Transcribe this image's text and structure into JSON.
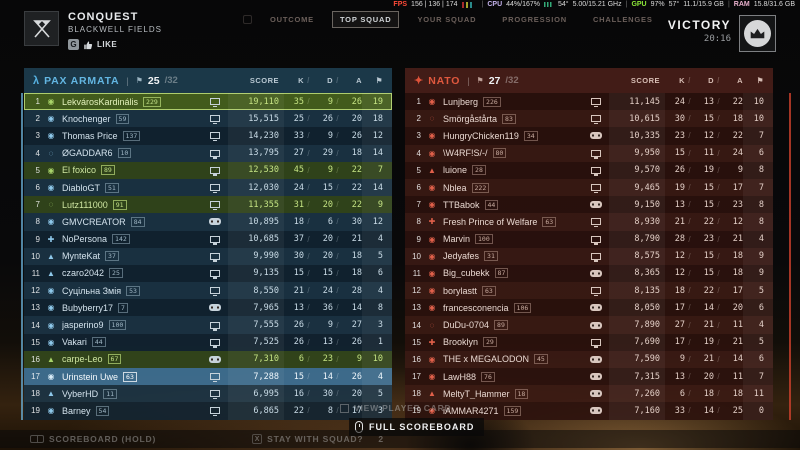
{
  "topbar": {
    "mode": "CONQUEST",
    "map": "BLACKWELL FIELDS",
    "like_key": "G",
    "like_label": "LIKE",
    "tabs": [
      {
        "label": "OUTCOME",
        "selected": false
      },
      {
        "label": "TOP SQUAD",
        "selected": true
      },
      {
        "label": "YOUR SQUAD",
        "selected": false
      },
      {
        "label": "PROGRESSION",
        "selected": false
      },
      {
        "label": "CHALLENGES",
        "selected": false
      }
    ],
    "perf": {
      "fps_label": "FPS",
      "fps": "156 | 136 | 174",
      "cpu_label": "CPU",
      "cpu": "44%/167%",
      "cpu_temp": "54°",
      "cpu_clock": "5.00/15.21 GHz",
      "gpu_label": "GPU",
      "gpu": "97%",
      "gpu_temp": "57°",
      "vram": "11.1/15.9 GB",
      "ram_label": "RAM",
      "ram": "15.8/31.6 GB"
    },
    "result": {
      "label": "VICTORY",
      "time": "20:16"
    }
  },
  "columns": {
    "score": "SCORE",
    "k": "K",
    "d": "D",
    "a": "A",
    "flag_glyph": "⚑"
  },
  "icons": {
    "class_glyphs": {
      "circle": "◉",
      "dashed": "◌",
      "triangle": "▲",
      "cross": "✚"
    },
    "team_pax_glyph": "λ",
    "team_nato_glyph": "✦"
  },
  "colors": {
    "pax_accent": "#5fb6e4",
    "nato_accent": "#e0533a",
    "squad_green": "#a9d46a",
    "fps": "#ff4a38",
    "gpu": "#8ce838"
  },
  "teams": [
    {
      "name": "PAX ARMATA",
      "count": "25",
      "max": "/32",
      "rows": [
        {
          "rank": "1",
          "class": "circle",
          "name": "LekvárosKardinális",
          "level": "229",
          "platform": "pc",
          "score": "19,110",
          "k": "35",
          "d": "9",
          "a": "26",
          "f": "19",
          "hl": "top"
        },
        {
          "rank": "2",
          "class": "circle",
          "name": "Knochenger",
          "level": "59",
          "platform": "pc",
          "score": "15,515",
          "k": "25",
          "d": "26",
          "a": "20",
          "f": "18",
          "hl": ""
        },
        {
          "rank": "3",
          "class": "circle",
          "name": "Thomas Price",
          "level": "137",
          "platform": "pc",
          "score": "14,230",
          "k": "33",
          "d": "9",
          "a": "26",
          "f": "12",
          "hl": ""
        },
        {
          "rank": "4",
          "class": "dashed",
          "name": "ØGADDAR6",
          "level": "10",
          "platform": "pc",
          "score": "13,795",
          "k": "27",
          "d": "29",
          "a": "18",
          "f": "14",
          "hl": ""
        },
        {
          "rank": "5",
          "class": "circle",
          "name": "El foxico",
          "level": "89",
          "platform": "pc",
          "score": "12,530",
          "k": "45",
          "d": "9",
          "a": "22",
          "f": "7",
          "hl": "squad"
        },
        {
          "rank": "6",
          "class": "circle",
          "name": "DiabloGT",
          "level": "51",
          "platform": "pc",
          "score": "12,030",
          "k": "24",
          "d": "15",
          "a": "22",
          "f": "14",
          "hl": ""
        },
        {
          "rank": "7",
          "class": "dashed",
          "name": "Lutz111000",
          "level": "91",
          "platform": "pc",
          "score": "11,355",
          "k": "31",
          "d": "20",
          "a": "22",
          "f": "9",
          "hl": "squad"
        },
        {
          "rank": "8",
          "class": "circle",
          "name": "GMVCREATOR",
          "level": "84",
          "platform": "console",
          "score": "10,895",
          "k": "18",
          "d": "6",
          "a": "30",
          "f": "12",
          "hl": ""
        },
        {
          "rank": "9",
          "class": "cross",
          "name": "NoPersona",
          "level": "142",
          "platform": "pc",
          "score": "10,685",
          "k": "37",
          "d": "20",
          "a": "21",
          "f": "4",
          "hl": ""
        },
        {
          "rank": "10",
          "class": "triangle",
          "name": "MynteKat",
          "level": "37",
          "platform": "pc",
          "score": "9,990",
          "k": "30",
          "d": "20",
          "a": "18",
          "f": "5",
          "hl": ""
        },
        {
          "rank": "11",
          "class": "triangle",
          "name": "czaro2042",
          "level": "25",
          "platform": "pc",
          "score": "9,135",
          "k": "15",
          "d": "15",
          "a": "18",
          "f": "6",
          "hl": ""
        },
        {
          "rank": "12",
          "class": "circle",
          "name": "Суцільна Змія",
          "level": "53",
          "platform": "pc",
          "score": "8,550",
          "k": "21",
          "d": "24",
          "a": "28",
          "f": "4",
          "hl": ""
        },
        {
          "rank": "13",
          "class": "circle",
          "name": "Bubyberry17",
          "level": "7",
          "platform": "console",
          "score": "7,965",
          "k": "13",
          "d": "36",
          "a": "14",
          "f": "8",
          "hl": ""
        },
        {
          "rank": "14",
          "class": "circle",
          "name": "jasperino9",
          "level": "100",
          "platform": "pc",
          "score": "7,555",
          "k": "26",
          "d": "9",
          "a": "27",
          "f": "3",
          "hl": ""
        },
        {
          "rank": "15",
          "class": "circle",
          "name": "Vakari",
          "level": "44",
          "platform": "pc",
          "score": "7,525",
          "k": "26",
          "d": "13",
          "a": "26",
          "f": "1",
          "hl": ""
        },
        {
          "rank": "16",
          "class": "triangle",
          "name": "carpe-Leo",
          "level": "67",
          "platform": "console",
          "score": "7,310",
          "k": "6",
          "d": "23",
          "a": "9",
          "f": "10",
          "hl": "squad"
        },
        {
          "rank": "17",
          "class": "circle",
          "name": "Urinstein Uwe",
          "level": "63",
          "platform": "pc",
          "score": "7,288",
          "k": "15",
          "d": "14",
          "a": "26",
          "f": "4",
          "hl": "self"
        },
        {
          "rank": "18",
          "class": "triangle",
          "name": "VyberHD",
          "level": "11",
          "platform": "pc",
          "score": "6,995",
          "k": "16",
          "d": "30",
          "a": "20",
          "f": "5",
          "hl": ""
        },
        {
          "rank": "19",
          "class": "circle",
          "name": "Barney",
          "level": "54",
          "platform": "pc",
          "score": "6,865",
          "k": "22",
          "d": "8",
          "a": "17",
          "f": "3",
          "hl": ""
        }
      ]
    },
    {
      "name": "NATO",
      "count": "27",
      "max": "/32",
      "rows": [
        {
          "rank": "1",
          "class": "circle",
          "name": "Lunjberg",
          "level": "226",
          "platform": "pc",
          "score": "11,145",
          "k": "24",
          "d": "13",
          "a": "22",
          "f": "10",
          "hl": ""
        },
        {
          "rank": "2",
          "class": "dashed",
          "name": "Smörgåstårta",
          "level": "83",
          "platform": "pc",
          "score": "10,615",
          "k": "30",
          "d": "15",
          "a": "18",
          "f": "10",
          "hl": ""
        },
        {
          "rank": "3",
          "class": "circle",
          "name": "HungryChicken119",
          "level": "34",
          "platform": "console",
          "score": "10,335",
          "k": "23",
          "d": "12",
          "a": "22",
          "f": "7",
          "hl": ""
        },
        {
          "rank": "4",
          "class": "circle",
          "name": "\\W4RF!S/-/",
          "level": "80",
          "platform": "pc",
          "score": "9,950",
          "k": "15",
          "d": "11",
          "a": "24",
          "f": "6",
          "hl": ""
        },
        {
          "rank": "5",
          "class": "triangle",
          "name": "luione",
          "level": "28",
          "platform": "pc",
          "score": "9,570",
          "k": "26",
          "d": "19",
          "a": "9",
          "f": "8",
          "hl": ""
        },
        {
          "rank": "6",
          "class": "circle",
          "name": "Nblea",
          "level": "222",
          "platform": "pc",
          "score": "9,465",
          "k": "19",
          "d": "15",
          "a": "17",
          "f": "7",
          "hl": ""
        },
        {
          "rank": "7",
          "class": "circle",
          "name": "TTBabok",
          "level": "44",
          "platform": "console",
          "score": "9,150",
          "k": "13",
          "d": "15",
          "a": "23",
          "f": "8",
          "hl": ""
        },
        {
          "rank": "8",
          "class": "cross",
          "name": "Fresh Prince of Welfare",
          "level": "63",
          "platform": "pc",
          "score": "8,930",
          "k": "21",
          "d": "22",
          "a": "12",
          "f": "8",
          "hl": ""
        },
        {
          "rank": "9",
          "class": "circle",
          "name": "Marvin",
          "level": "100",
          "platform": "pc",
          "score": "8,790",
          "k": "28",
          "d": "23",
          "a": "21",
          "f": "4",
          "hl": ""
        },
        {
          "rank": "10",
          "class": "circle",
          "name": "Jedyafes",
          "level": "31",
          "platform": "pc",
          "score": "8,575",
          "k": "12",
          "d": "15",
          "a": "18",
          "f": "9",
          "hl": ""
        },
        {
          "rank": "11",
          "class": "circle",
          "name": "Big_cubekk",
          "level": "87",
          "platform": "console",
          "score": "8,365",
          "k": "12",
          "d": "15",
          "a": "18",
          "f": "9",
          "hl": ""
        },
        {
          "rank": "12",
          "class": "circle",
          "name": "borylastt",
          "level": "63",
          "platform": "pc",
          "score": "8,135",
          "k": "18",
          "d": "22",
          "a": "17",
          "f": "5",
          "hl": ""
        },
        {
          "rank": "13",
          "class": "circle",
          "name": "francesconencia",
          "level": "106",
          "platform": "console",
          "score": "8,050",
          "k": "17",
          "d": "14",
          "a": "20",
          "f": "6",
          "hl": ""
        },
        {
          "rank": "14",
          "class": "dashed",
          "name": "DuDu-0704",
          "level": "89",
          "platform": "console",
          "score": "7,890",
          "k": "27",
          "d": "21",
          "a": "11",
          "f": "4",
          "hl": ""
        },
        {
          "rank": "15",
          "class": "cross",
          "name": "Brooklyn",
          "level": "29",
          "platform": "pc",
          "score": "7,690",
          "k": "17",
          "d": "19",
          "a": "21",
          "f": "5",
          "hl": ""
        },
        {
          "rank": "16",
          "class": "circle",
          "name": "THE x MEGALODON",
          "level": "45",
          "platform": "console",
          "score": "7,590",
          "k": "9",
          "d": "21",
          "a": "14",
          "f": "6",
          "hl": ""
        },
        {
          "rank": "17",
          "class": "circle",
          "name": "LawH88",
          "level": "76",
          "platform": "console",
          "score": "7,315",
          "k": "13",
          "d": "20",
          "a": "11",
          "f": "7",
          "hl": ""
        },
        {
          "rank": "18",
          "class": "triangle",
          "name": "MeltyT_Hammer",
          "level": "18",
          "platform": "console",
          "score": "7,260",
          "k": "6",
          "d": "18",
          "a": "18",
          "f": "11",
          "hl": ""
        },
        {
          "rank": "19",
          "class": "circle",
          "name": "iAMMAR4271",
          "level": "159",
          "platform": "console",
          "score": "7,160",
          "k": "33",
          "d": "14",
          "a": "25",
          "f": "0",
          "hl": ""
        }
      ]
    }
  ],
  "bottombar": {
    "view_player_card": "VIEW PLAYER CARD",
    "full_scoreboard": "FULL SCOREBOARD",
    "scoreboard_hold": "SCOREBOARD (HOLD)",
    "stay_with_squad": "STAY WITH SQUAD?",
    "stay_count": "2",
    "stay_key": "X"
  }
}
